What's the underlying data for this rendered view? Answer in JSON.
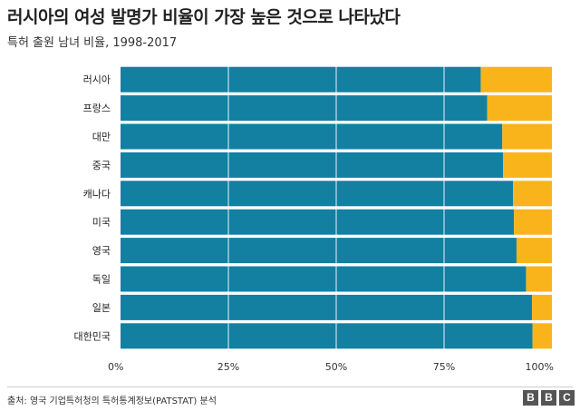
{
  "header": {
    "title": "러시아의 여성 발명가 비율이 가장 높은 것으로 나타났다",
    "subtitle": "특허 출원 남녀 비율, 1998-2017"
  },
  "footer": {
    "source": "출처: 영국 기업특허청의 특허통계정보(PATSTAT) 분석",
    "logo_letters": [
      "B",
      "B",
      "C"
    ]
  },
  "colors": {
    "male": "#1380a1",
    "female": "#fab41b",
    "grid": "#ffffff"
  },
  "chart_data": {
    "type": "bar",
    "orientation": "horizontal",
    "stacked": true,
    "categories": [
      "러시아",
      "프랑스",
      "대만",
      "중국",
      "캐나다",
      "미국",
      "영국",
      "독일",
      "일본",
      "대한민국"
    ],
    "series": [
      {
        "values": [
          83.5,
          85,
          88.5,
          88.7,
          91,
          91.2,
          91.8,
          94,
          95.4,
          95.5
        ]
      },
      {
        "values": [
          16.5,
          15,
          11.5,
          11.3,
          9,
          8.8,
          8.2,
          6,
          4.6,
          4.5
        ]
      }
    ],
    "xlim": [
      0,
      100
    ],
    "xticks": [
      "0%",
      "25%",
      "50%",
      "75%",
      "100%"
    ],
    "grid": true
  }
}
